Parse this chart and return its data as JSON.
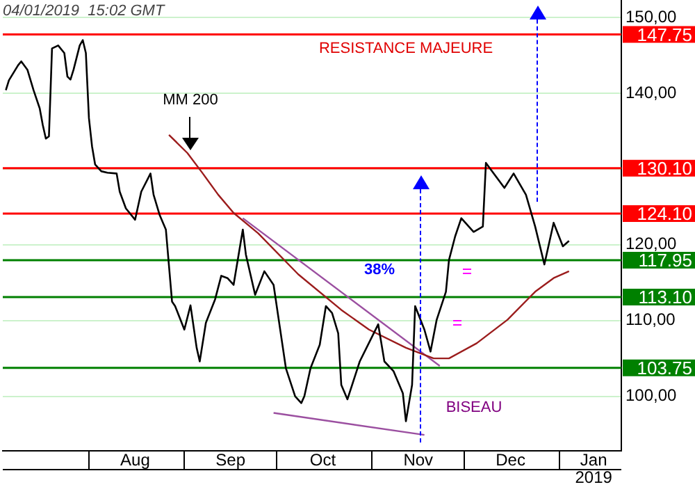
{
  "chart_data": {
    "type": "line",
    "legend": false,
    "marker": "none",
    "grid": "y",
    "line_style": "solid",
    "xlim": [
      "2018-07-04",
      "2019-01-21"
    ],
    "xticks": [
      {
        "value": "2018-08-01",
        "label": null
      },
      {
        "value": "2018-08-16",
        "label": "Aug"
      },
      {
        "value": "2018-09-01",
        "label": null
      },
      {
        "value": "2018-09-16",
        "label": "Sep"
      },
      {
        "value": "2018-10-01",
        "label": null
      },
      {
        "value": "2018-10-16",
        "label": "Oct"
      },
      {
        "value": "2018-11-01",
        "label": null
      },
      {
        "value": "2018-11-16",
        "label": "Nov"
      },
      {
        "value": "2018-12-01",
        "label": null
      },
      {
        "value": "2018-12-16",
        "label": "Dec"
      },
      {
        "value": "2019-01-01",
        "label": null
      },
      {
        "value": "2019-01-12",
        "label": "Jan\n2019"
      }
    ],
    "ylim": [
      92.8,
      152.3
    ],
    "yticks": [
      {
        "value": 100,
        "label": "100,00"
      },
      {
        "value": 110,
        "label": "110,00"
      },
      {
        "value": 120,
        "label": "120,00"
      },
      {
        "value": 130,
        "label": null
      },
      {
        "value": 140,
        "label": "140,00"
      },
      {
        "value": 150,
        "label": "150,00"
      }
    ],
    "series": [
      {
        "color": "#000000",
        "x": [
          "2018-07-05",
          "2018-07-06",
          "2018-07-09",
          "2018-07-10",
          "2018-07-12",
          "2018-07-14",
          "2018-07-16",
          "2018-07-17",
          "2018-07-18",
          "2018-07-19",
          "2018-07-20",
          "2018-07-22",
          "2018-07-24",
          "2018-07-25",
          "2018-07-26",
          "2018-07-27",
          "2018-07-29",
          "2018-07-30",
          "2018-07-31",
          "2018-08-01",
          "2018-08-02",
          "2018-08-03",
          "2018-08-05",
          "2018-08-07",
          "2018-08-10",
          "2018-08-11",
          "2018-08-13",
          "2018-08-16",
          "2018-08-18",
          "2018-08-21",
          "2018-08-22",
          "2018-08-24",
          "2018-08-26",
          "2018-08-28",
          "2018-08-29",
          "2018-09-01",
          "2018-09-03",
          "2018-09-05",
          "2018-09-06",
          "2018-09-08",
          "2018-09-11",
          "2018-09-13",
          "2018-09-15",
          "2018-09-17",
          "2018-09-20",
          "2018-09-21",
          "2018-09-24",
          "2018-09-27",
          "2018-09-30",
          "2018-10-02",
          "2018-10-04",
          "2018-10-07",
          "2018-10-09",
          "2018-10-10",
          "2018-10-12",
          "2018-10-15",
          "2018-10-17",
          "2018-10-19",
          "2018-10-21",
          "2018-10-22",
          "2018-10-24",
          "2018-10-28",
          "2018-11-03",
          "2018-11-05",
          "2018-11-08",
          "2018-11-11",
          "2018-11-12",
          "2018-11-14",
          "2018-11-15",
          "2018-11-18",
          "2018-11-20",
          "2018-11-22",
          "2018-11-25",
          "2018-11-26",
          "2018-11-28",
          "2018-11-30",
          "2018-12-04",
          "2018-12-07",
          "2018-12-08",
          "2018-12-14",
          "2018-12-17",
          "2018-12-21",
          "2018-12-24",
          "2018-12-27",
          "2018-12-30",
          "2019-01-02",
          "2019-01-04"
        ],
        "values": [
          140.4,
          141.7,
          143.7,
          144.2,
          143.1,
          140.4,
          138,
          135.8,
          134,
          134.3,
          145.9,
          146.3,
          145.3,
          142.2,
          141.8,
          143.1,
          146.3,
          147,
          145.3,
          136.7,
          133,
          130.6,
          129.7,
          129.5,
          129.4,
          127,
          124.8,
          123.3,
          127,
          129.4,
          126.6,
          123.9,
          122,
          112.5,
          111.9,
          108.8,
          112,
          106.4,
          104.6,
          109.7,
          112.8,
          115.9,
          115.6,
          114.7,
          122,
          118.7,
          113.4,
          116.5,
          114.7,
          109.2,
          103.7,
          100,
          99.1,
          100,
          103.7,
          106.8,
          111.9,
          111,
          108.3,
          101.5,
          99.6,
          104.6,
          109.5,
          104.6,
          103.3,
          100.4,
          96.7,
          101.5,
          111.9,
          108.8,
          105.9,
          110.1,
          113.8,
          118,
          121.1,
          123.5,
          121.7,
          122.4,
          130.8,
          127.5,
          129.4,
          126.6,
          122.4,
          117.4,
          122.9,
          119.8,
          120.5
        ]
      },
      {
        "color": "#9b1c1c",
        "x": [
          "2018-08-27",
          "2018-09-02",
          "2018-09-07",
          "2018-09-12",
          "2018-09-17",
          "2018-09-25",
          "2018-10-08",
          "2018-10-22",
          "2018-10-31",
          "2018-11-12",
          "2018-11-21",
          "2018-11-26",
          "2018-12-05",
          "2018-12-15",
          "2018-12-24",
          "2018-12-30",
          "2019-01-04"
        ],
        "values": [
          134.5,
          132.1,
          129.4,
          126.6,
          124.2,
          121.5,
          116.1,
          111.4,
          108.8,
          106.4,
          105,
          105,
          107,
          110.1,
          113.8,
          115.6,
          116.5
        ]
      },
      {
        "color": "#9b4fa0",
        "x": [
          "2018-09-20",
          "2018-11-23"
        ],
        "values": [
          123.5,
          104
        ]
      },
      {
        "color": "#9b4fa0",
        "x": [
          "2018-09-30",
          "2018-11-18"
        ],
        "values": [
          97.8,
          94.9
        ]
      }
    ],
    "ref_lines": [
      {
        "axis": "y",
        "value": 147.75,
        "label": "147.75",
        "color": "#ff0000"
      },
      {
        "axis": "y",
        "value": 130.1,
        "label": "130.10",
        "color": "#ff0000"
      },
      {
        "axis": "y",
        "value": 124.1,
        "label": "124.10",
        "color": "#ff0000"
      },
      {
        "axis": "y",
        "value": 117.95,
        "label": "117.95",
        "color": "#008000"
      },
      {
        "axis": "y",
        "value": 113.1,
        "label": "113.10",
        "color": "#008000"
      },
      {
        "axis": "y",
        "value": 103.75,
        "label": "103.75",
        "color": "#008000"
      }
    ],
    "annotations": [
      "04/01/2019  15:02 GMT",
      "RESISTANCE MAJEURE",
      "MM 200",
      "BISEAU",
      "38%"
    ]
  }
}
